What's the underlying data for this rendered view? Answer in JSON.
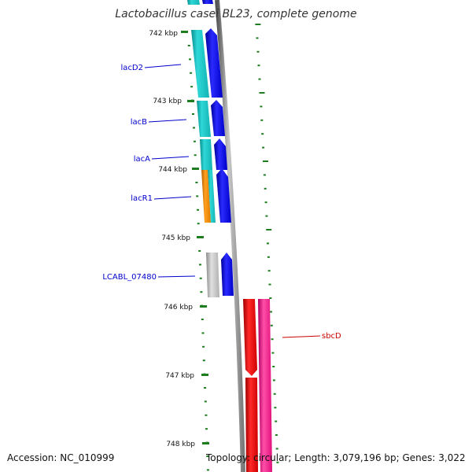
{
  "title": "Lactobacillus casei BL23, complete genome",
  "footer": {
    "accession": "Accession: NC_010999",
    "summary": "Topology: circular; Length: 3,079,196 bp; Genes: 3,022"
  },
  "colors": {
    "backbone": "#8c8c8c",
    "tick": "#1e7d1e",
    "gene_forward": "#0000e6",
    "cds_teal": "#16c2c2",
    "cds_orange": "#f08a00",
    "cds_grey": "#bdbdbd",
    "cds_red": "#e00000",
    "cds_pink": "#ee1a8c",
    "label_blue": "#0000cc",
    "label_red": "#cc0000"
  },
  "kbp_labels": [
    "742 kbp",
    "743 kbp",
    "744 kbp",
    "745 kbp",
    "746 kbp",
    "747 kbp",
    "748 kbp"
  ],
  "genes": [
    {
      "name": "lacD2",
      "color": "label_blue"
    },
    {
      "name": "lacB",
      "color": "label_blue"
    },
    {
      "name": "lacA",
      "color": "label_blue"
    },
    {
      "name": "lacR1",
      "color": "label_blue"
    },
    {
      "name": "LCABL_07480",
      "color": "label_blue"
    },
    {
      "name": "sbcD",
      "color": "label_red"
    }
  ]
}
